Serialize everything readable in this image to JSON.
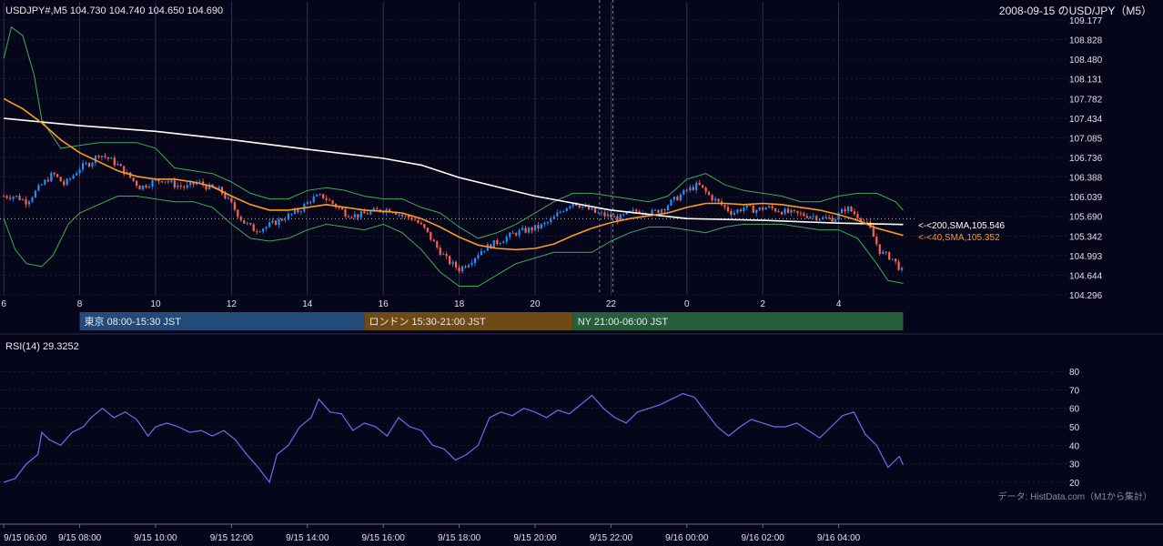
{
  "header": {
    "symbol_ohlc": "USDJPY#,M5 104.730 104.740 104.650 104.690",
    "title_right": "2008-09-15 のUSD/JPY（M5）"
  },
  "sessions": [
    {
      "label": "東京 08:00-15:30 JST",
      "color": "#234a78"
    },
    {
      "label": "ロンドン 15:30-21:00 JST",
      "color": "#6e4a14"
    },
    {
      "label": "NY 21:00-06:00 JST",
      "color": "#265e3c"
    }
  ],
  "indicator_labels": {
    "sma200": "<-<200,SMA,105.546",
    "sma40": "<-<40,SMA,105.352"
  },
  "rsi_label": "RSI(14) 29.3252",
  "source_note": "データ: HistData.com（M1から集計）",
  "colors": {
    "background": "#06061a",
    "bull_candle": "#1e90ff",
    "bear_candle": "#ff6347",
    "sma200": "#ffffff",
    "sma40": "#ff9a1f",
    "bollinger": "#3daa5c",
    "rsi": "#6670f0",
    "grid": "#2b2b45"
  },
  "chart_data": [
    {
      "type": "candlestick",
      "symbol": "USDJPY#",
      "timeframe": "M5",
      "ylim": [
        104.296,
        109.177
      ],
      "y_ticks": [
        "109.177",
        "108.828",
        "108.480",
        "108.131",
        "107.782",
        "107.434",
        "107.085",
        "106.736",
        "106.388",
        "106.039",
        "105.690",
        "105.342",
        "104.993",
        "104.644",
        "104.296"
      ],
      "x_ticks": [
        "6",
        "8",
        "10",
        "12",
        "14",
        "16",
        "18",
        "20",
        "22",
        "0",
        "2",
        "4"
      ],
      "x_range_hours": [
        6,
        29.7
      ],
      "close_anchors": [
        [
          6.0,
          106.05
        ],
        [
          6.3,
          106.05
        ],
        [
          6.6,
          105.95
        ],
        [
          7.0,
          106.25
        ],
        [
          7.3,
          106.45
        ],
        [
          7.6,
          106.25
        ],
        [
          8.0,
          106.55
        ],
        [
          8.3,
          106.65
        ],
        [
          8.5,
          106.8
        ],
        [
          8.8,
          106.7
        ],
        [
          9.0,
          106.6
        ],
        [
          9.3,
          106.4
        ],
        [
          9.6,
          106.2
        ],
        [
          9.9,
          106.3
        ],
        [
          10.2,
          106.35
        ],
        [
          10.5,
          106.25
        ],
        [
          10.8,
          106.2
        ],
        [
          11.1,
          106.3
        ],
        [
          11.4,
          106.2
        ],
        [
          11.7,
          106.15
        ],
        [
          12.0,
          105.9
        ],
        [
          12.3,
          105.6
        ],
        [
          12.6,
          105.45
        ],
        [
          12.9,
          105.5
        ],
        [
          13.2,
          105.6
        ],
        [
          13.5,
          105.7
        ],
        [
          13.8,
          105.8
        ],
        [
          14.1,
          106.0
        ],
        [
          14.4,
          106.05
        ],
        [
          14.7,
          105.9
        ],
        [
          15.0,
          105.75
        ],
        [
          15.3,
          105.7
        ],
        [
          15.6,
          105.75
        ],
        [
          15.9,
          105.8
        ],
        [
          16.2,
          105.82
        ],
        [
          16.5,
          105.7
        ],
        [
          16.8,
          105.65
        ],
        [
          17.1,
          105.45
        ],
        [
          17.4,
          105.15
        ],
        [
          17.7,
          104.9
        ],
        [
          18.0,
          104.75
        ],
        [
          18.3,
          104.9
        ],
        [
          18.6,
          105.1
        ],
        [
          18.9,
          105.2
        ],
        [
          19.2,
          105.3
        ],
        [
          19.5,
          105.4
        ],
        [
          19.8,
          105.45
        ],
        [
          20.1,
          105.5
        ],
        [
          20.4,
          105.6
        ],
        [
          20.7,
          105.8
        ],
        [
          21.0,
          105.95
        ],
        [
          21.3,
          105.85
        ],
        [
          21.6,
          105.75
        ],
        [
          21.9,
          105.7
        ],
        [
          22.2,
          105.65
        ],
        [
          22.5,
          105.75
        ],
        [
          22.8,
          105.8
        ],
        [
          23.1,
          105.75
        ],
        [
          23.4,
          105.85
        ],
        [
          23.7,
          106.0
        ],
        [
          24.0,
          106.15
        ],
        [
          24.3,
          106.25
        ],
        [
          24.6,
          106.05
        ],
        [
          24.9,
          105.9
        ],
        [
          25.2,
          105.75
        ],
        [
          25.5,
          105.85
        ],
        [
          25.8,
          105.8
        ],
        [
          26.1,
          105.85
        ],
        [
          26.4,
          105.8
        ],
        [
          26.7,
          105.75
        ],
        [
          27.0,
          105.72
        ],
        [
          27.3,
          105.7
        ],
        [
          27.6,
          105.65
        ],
        [
          27.9,
          105.65
        ],
        [
          28.2,
          105.85
        ],
        [
          28.5,
          105.7
        ],
        [
          28.8,
          105.5
        ],
        [
          29.1,
          105.05
        ],
        [
          29.4,
          104.95
        ],
        [
          29.7,
          104.69
        ]
      ],
      "sma200_anchors": [
        [
          6.0,
          107.43
        ],
        [
          8.0,
          107.3
        ],
        [
          10.0,
          107.2
        ],
        [
          12.0,
          107.05
        ],
        [
          14.0,
          106.88
        ],
        [
          16.0,
          106.72
        ],
        [
          17.0,
          106.6
        ],
        [
          18.0,
          106.38
        ],
        [
          20.0,
          106.05
        ],
        [
          22.0,
          105.8
        ],
        [
          24.0,
          105.65
        ],
        [
          26.0,
          105.62
        ],
        [
          28.0,
          105.57
        ],
        [
          29.7,
          105.546
        ]
      ],
      "sma40_anchors": [
        [
          6.0,
          107.78
        ],
        [
          6.5,
          107.6
        ],
        [
          7.0,
          107.35
        ],
        [
          7.5,
          107.05
        ],
        [
          8.0,
          106.82
        ],
        [
          8.5,
          106.66
        ],
        [
          9.0,
          106.5
        ],
        [
          9.5,
          106.4
        ],
        [
          10.0,
          106.35
        ],
        [
          10.5,
          106.35
        ],
        [
          11.0,
          106.3
        ],
        [
          11.5,
          106.22
        ],
        [
          12.0,
          106.05
        ],
        [
          12.5,
          105.9
        ],
        [
          13.0,
          105.8
        ],
        [
          13.5,
          105.8
        ],
        [
          14.0,
          105.85
        ],
        [
          14.5,
          105.9
        ],
        [
          15.0,
          105.85
        ],
        [
          15.5,
          105.8
        ],
        [
          16.0,
          105.78
        ],
        [
          16.5,
          105.75
        ],
        [
          17.0,
          105.65
        ],
        [
          17.5,
          105.5
        ],
        [
          18.0,
          105.32
        ],
        [
          18.5,
          105.18
        ],
        [
          19.0,
          105.12
        ],
        [
          19.5,
          105.1
        ],
        [
          20.0,
          105.12
        ],
        [
          20.5,
          105.2
        ],
        [
          21.0,
          105.35
        ],
        [
          21.5,
          105.48
        ],
        [
          22.0,
          105.58
        ],
        [
          22.5,
          105.65
        ],
        [
          23.0,
          105.7
        ],
        [
          23.5,
          105.75
        ],
        [
          24.0,
          105.85
        ],
        [
          24.5,
          105.92
        ],
        [
          25.0,
          105.92
        ],
        [
          25.5,
          105.9
        ],
        [
          26.0,
          105.92
        ],
        [
          26.5,
          105.9
        ],
        [
          27.0,
          105.85
        ],
        [
          27.5,
          105.8
        ],
        [
          28.0,
          105.72
        ],
        [
          28.5,
          105.62
        ],
        [
          29.0,
          105.48
        ],
        [
          29.7,
          105.352
        ]
      ],
      "bollinger_upper": [
        [
          6.0,
          108.5
        ],
        [
          6.2,
          109.05
        ],
        [
          6.5,
          108.9
        ],
        [
          6.8,
          108.2
        ],
        [
          7.0,
          107.4
        ],
        [
          7.5,
          106.9
        ],
        [
          8.0,
          106.95
        ],
        [
          8.5,
          107.0
        ],
        [
          9.0,
          107.0
        ],
        [
          9.5,
          107.0
        ],
        [
          10.0,
          106.9
        ],
        [
          10.5,
          106.55
        ],
        [
          11.0,
          106.5
        ],
        [
          11.5,
          106.45
        ],
        [
          12.0,
          106.3
        ],
        [
          12.5,
          106.1
        ],
        [
          13.0,
          106.0
        ],
        [
          13.5,
          106.0
        ],
        [
          14.0,
          106.15
        ],
        [
          14.5,
          106.2
        ],
        [
          15.0,
          106.15
        ],
        [
          15.5,
          106.05
        ],
        [
          16.0,
          106.0
        ],
        [
          16.5,
          106.0
        ],
        [
          17.0,
          105.85
        ],
        [
          17.5,
          105.75
        ],
        [
          18.0,
          105.5
        ],
        [
          18.5,
          105.3
        ],
        [
          19.0,
          105.4
        ],
        [
          19.5,
          105.55
        ],
        [
          20.0,
          105.75
        ],
        [
          20.5,
          105.95
        ],
        [
          21.0,
          106.1
        ],
        [
          21.5,
          106.1
        ],
        [
          22.0,
          106.05
        ],
        [
          22.5,
          106.0
        ],
        [
          23.0,
          105.95
        ],
        [
          23.5,
          106.05
        ],
        [
          24.0,
          106.35
        ],
        [
          24.5,
          106.45
        ],
        [
          25.0,
          106.25
        ],
        [
          25.5,
          106.15
        ],
        [
          26.0,
          106.1
        ],
        [
          26.5,
          106.05
        ],
        [
          27.0,
          105.95
        ],
        [
          27.5,
          105.95
        ],
        [
          28.0,
          106.05
        ],
        [
          28.5,
          106.1
        ],
        [
          29.0,
          106.1
        ],
        [
          29.5,
          105.95
        ],
        [
          29.7,
          105.8
        ]
      ],
      "bollinger_lower": [
        [
          6.0,
          105.65
        ],
        [
          6.3,
          105.1
        ],
        [
          6.6,
          104.85
        ],
        [
          7.0,
          104.8
        ],
        [
          7.3,
          105.0
        ],
        [
          7.7,
          105.55
        ],
        [
          8.0,
          105.75
        ],
        [
          8.5,
          105.9
        ],
        [
          9.0,
          106.05
        ],
        [
          9.5,
          106.05
        ],
        [
          10.0,
          106.0
        ],
        [
          10.5,
          105.95
        ],
        [
          11.0,
          105.95
        ],
        [
          11.5,
          105.85
        ],
        [
          12.0,
          105.55
        ],
        [
          12.5,
          105.3
        ],
        [
          13.0,
          105.25
        ],
        [
          13.5,
          105.3
        ],
        [
          14.0,
          105.45
        ],
        [
          14.5,
          105.55
        ],
        [
          15.0,
          105.5
        ],
        [
          15.5,
          105.45
        ],
        [
          16.0,
          105.55
        ],
        [
          16.5,
          105.4
        ],
        [
          17.0,
          105.1
        ],
        [
          17.5,
          104.7
        ],
        [
          18.0,
          104.45
        ],
        [
          18.5,
          104.45
        ],
        [
          19.0,
          104.65
        ],
        [
          19.5,
          104.85
        ],
        [
          20.0,
          104.95
        ],
        [
          20.5,
          105.05
        ],
        [
          21.0,
          105.05
        ],
        [
          21.5,
          105.05
        ],
        [
          22.0,
          105.25
        ],
        [
          22.5,
          105.4
        ],
        [
          23.0,
          105.5
        ],
        [
          23.5,
          105.5
        ],
        [
          24.0,
          105.45
        ],
        [
          24.5,
          105.4
        ],
        [
          25.0,
          105.5
        ],
        [
          25.5,
          105.55
        ],
        [
          26.0,
          105.55
        ],
        [
          26.5,
          105.55
        ],
        [
          27.0,
          105.5
        ],
        [
          27.5,
          105.45
        ],
        [
          28.0,
          105.45
        ],
        [
          28.5,
          105.3
        ],
        [
          29.0,
          104.85
        ],
        [
          29.3,
          104.55
        ],
        [
          29.7,
          104.5
        ]
      ],
      "price_line": 105.65,
      "dashed_lines_hours": [
        21.7,
        22.05
      ]
    },
    {
      "type": "line",
      "name": "RSI(14)",
      "ylim": [
        15,
        85
      ],
      "y_ticks": [
        "80",
        "70",
        "60",
        "50",
        "40",
        "30",
        "20"
      ],
      "dashed_levels": [
        70,
        30
      ],
      "x_tick_labels": [
        "9/15 06:00",
        "9/15 08:00",
        "9/15 10:00",
        "9/15 12:00",
        "9/15 14:00",
        "9/15 16:00",
        "9/15 18:00",
        "9/15 20:00",
        "9/15 22:00",
        "9/16 00:00",
        "9/16 02:00",
        "9/16 04:00"
      ],
      "x_range_hours": [
        6,
        29.7
      ],
      "values_anchors": [
        [
          6.0,
          20
        ],
        [
          6.3,
          22
        ],
        [
          6.6,
          30
        ],
        [
          6.9,
          35
        ],
        [
          7.0,
          47
        ],
        [
          7.2,
          43
        ],
        [
          7.5,
          40
        ],
        [
          7.8,
          47
        ],
        [
          8.1,
          50
        ],
        [
          8.3,
          55
        ],
        [
          8.6,
          60
        ],
        [
          8.9,
          55
        ],
        [
          9.2,
          58
        ],
        [
          9.5,
          54
        ],
        [
          9.8,
          45
        ],
        [
          10.0,
          50
        ],
        [
          10.3,
          52
        ],
        [
          10.6,
          50
        ],
        [
          10.9,
          47
        ],
        [
          11.2,
          48
        ],
        [
          11.5,
          45
        ],
        [
          11.8,
          48
        ],
        [
          12.1,
          43
        ],
        [
          12.4,
          35
        ],
        [
          12.7,
          28
        ],
        [
          13.0,
          20
        ],
        [
          13.2,
          35
        ],
        [
          13.5,
          40
        ],
        [
          13.8,
          50
        ],
        [
          14.1,
          55
        ],
        [
          14.3,
          65
        ],
        [
          14.6,
          58
        ],
        [
          14.9,
          57
        ],
        [
          15.2,
          48
        ],
        [
          15.5,
          52
        ],
        [
          15.8,
          50
        ],
        [
          16.1,
          45
        ],
        [
          16.4,
          55
        ],
        [
          16.7,
          50
        ],
        [
          17.0,
          48
        ],
        [
          17.3,
          40
        ],
        [
          17.6,
          38
        ],
        [
          17.9,
          32
        ],
        [
          18.2,
          35
        ],
        [
          18.5,
          40
        ],
        [
          18.8,
          55
        ],
        [
          19.1,
          58
        ],
        [
          19.4,
          56
        ],
        [
          19.7,
          60
        ],
        [
          20.0,
          58
        ],
        [
          20.3,
          55
        ],
        [
          20.6,
          59
        ],
        [
          20.9,
          57
        ],
        [
          21.2,
          62
        ],
        [
          21.5,
          67
        ],
        [
          21.8,
          60
        ],
        [
          22.1,
          55
        ],
        [
          22.4,
          52
        ],
        [
          22.7,
          58
        ],
        [
          23.0,
          60
        ],
        [
          23.3,
          62
        ],
        [
          23.6,
          65
        ],
        [
          23.9,
          68
        ],
        [
          24.2,
          66
        ],
        [
          24.5,
          58
        ],
        [
          24.8,
          50
        ],
        [
          25.1,
          45
        ],
        [
          25.4,
          50
        ],
        [
          25.7,
          54
        ],
        [
          26.0,
          52
        ],
        [
          26.3,
          50
        ],
        [
          26.6,
          50
        ],
        [
          26.9,
          52
        ],
        [
          27.2,
          48
        ],
        [
          27.5,
          44
        ],
        [
          27.8,
          50
        ],
        [
          28.1,
          56
        ],
        [
          28.4,
          58
        ],
        [
          28.7,
          46
        ],
        [
          29.0,
          40
        ],
        [
          29.3,
          28
        ],
        [
          29.6,
          34
        ],
        [
          29.7,
          29.3
        ]
      ]
    }
  ]
}
